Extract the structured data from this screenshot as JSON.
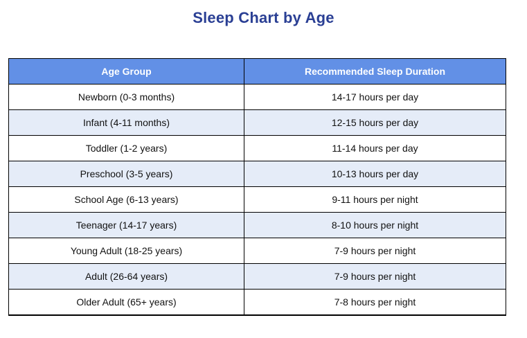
{
  "title": "Sleep Chart by Age",
  "chart_data": {
    "type": "table",
    "title": "Sleep Chart by Age",
    "columns": [
      "Age Group",
      "Recommended Sleep Duration"
    ],
    "rows": [
      [
        "Newborn (0-3 months)",
        "14-17 hours per day"
      ],
      [
        "Infant (4-11 months)",
        "12-15 hours per day"
      ],
      [
        "Toddler (1-2 years)",
        "11-14 hours per day"
      ],
      [
        "Preschool (3-5 years)",
        "10-13 hours per day"
      ],
      [
        "School Age (6-13 years)",
        "9-11 hours per night"
      ],
      [
        "Teenager (14-17 years)",
        "8-10 hours per night"
      ],
      [
        "Young Adult (18-25 years)",
        "7-9 hours per night"
      ],
      [
        "Adult (26-64 years)",
        "7-9 hours per night"
      ],
      [
        "Older Adult (65+ years)",
        "7-8 hours per night"
      ]
    ],
    "layout": {
      "header_style": "blue-banded",
      "row_striping": "alternating white / light blue starting with white"
    }
  },
  "colors": {
    "title_color": "#2A3F94",
    "header_bg": "#6290E6",
    "header_text": "#FFFFFF",
    "row_bg": "#FFFFFF",
    "row_alt_bg": "#E5ECF8",
    "body_text": "#111111",
    "border_color": "#000000"
  }
}
